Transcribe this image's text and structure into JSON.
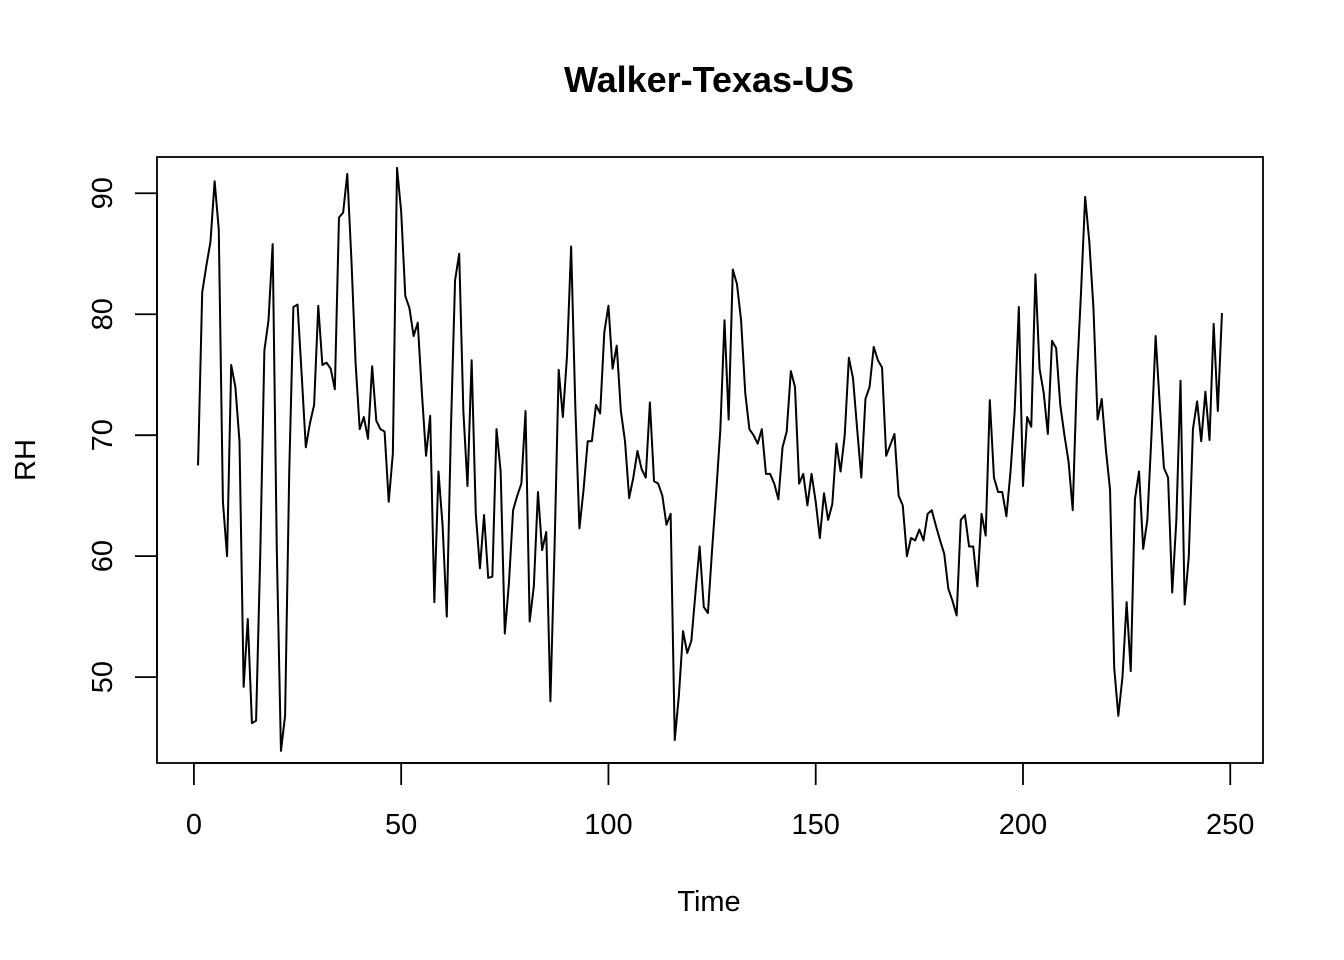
{
  "chart_data": {
    "type": "line",
    "title": "Walker-Texas-US",
    "xlabel": "Time",
    "ylabel": "RH",
    "xlim": [
      -8.9,
      257.9
    ],
    "ylim": [
      42.9,
      93.0
    ],
    "grid": false,
    "legend": "none",
    "x_ticks": [
      0,
      50,
      100,
      150,
      200,
      250
    ],
    "y_ticks": [
      50,
      60,
      70,
      80,
      90
    ],
    "x": [
      1,
      2,
      3,
      4,
      5,
      6,
      7,
      8,
      9,
      10,
      11,
      12,
      13,
      14,
      15,
      16,
      17,
      18,
      19,
      20,
      21,
      22,
      23,
      24,
      25,
      26,
      27,
      28,
      29,
      30,
      31,
      32,
      33,
      34,
      35,
      36,
      37,
      38,
      39,
      40,
      41,
      42,
      43,
      44,
      45,
      46,
      47,
      48,
      49,
      50,
      51,
      52,
      53,
      54,
      55,
      56,
      57,
      58,
      59,
      60,
      61,
      62,
      63,
      64,
      65,
      66,
      67,
      68,
      69,
      70,
      71,
      72,
      73,
      74,
      75,
      76,
      77,
      78,
      79,
      80,
      81,
      82,
      83,
      84,
      85,
      86,
      87,
      88,
      89,
      90,
      91,
      92,
      93,
      94,
      95,
      96,
      97,
      98,
      99,
      100,
      101,
      102,
      103,
      104,
      105,
      106,
      107,
      108,
      109,
      110,
      111,
      112,
      113,
      114,
      115,
      116,
      117,
      118,
      119,
      120,
      121,
      122,
      123,
      124,
      125,
      126,
      127,
      128,
      129,
      130,
      131,
      132,
      133,
      134,
      135,
      136,
      137,
      138,
      139,
      140,
      141,
      142,
      143,
      144,
      145,
      146,
      147,
      148,
      149,
      150,
      151,
      152,
      153,
      154,
      155,
      156,
      157,
      158,
      159,
      160,
      161,
      162,
      163,
      164,
      165,
      166,
      167,
      168,
      169,
      170,
      171,
      172,
      173,
      174,
      175,
      176,
      177,
      178,
      179,
      180,
      181,
      182,
      183,
      184,
      185,
      186,
      187,
      188,
      189,
      190,
      191,
      192,
      193,
      194,
      195,
      196,
      197,
      198,
      199,
      200,
      201,
      202,
      203,
      204,
      205,
      206,
      207,
      208,
      209,
      210,
      211,
      212,
      213,
      214,
      215,
      216,
      217,
      218,
      219,
      220,
      221,
      222,
      223,
      224,
      225,
      226,
      227,
      228,
      229,
      230,
      231,
      232,
      233,
      234,
      235,
      236,
      237,
      238,
      239,
      240,
      241,
      242,
      243,
      244,
      245,
      246,
      247,
      248
    ],
    "series": [
      {
        "values": [
          67.5,
          81.8,
          84.0,
          86.0,
          91.0,
          87.0,
          64.5,
          60.0,
          75.8,
          74.0,
          69.5,
          49.2,
          54.8,
          46.2,
          46.4,
          60.0,
          77.0,
          79.5,
          85.8,
          60.5,
          43.9,
          46.8,
          67.0,
          80.6,
          80.8,
          75.0,
          69.0,
          71.0,
          72.5,
          80.7,
          75.8,
          76.0,
          75.5,
          73.8,
          88.0,
          88.4,
          91.6,
          84.5,
          76.0,
          70.5,
          71.5,
          69.7,
          75.7,
          71.2,
          70.5,
          70.3,
          64.5,
          68.5,
          92.1,
          88.5,
          81.5,
          80.5,
          78.2,
          79.3,
          73.5,
          68.3,
          71.6,
          56.2,
          67.0,
          62.5,
          55.0,
          70.5,
          82.8,
          85.0,
          72.0,
          65.8,
          76.2,
          63.5,
          59.0,
          63.4,
          58.2,
          58.3,
          70.5,
          67.0,
          53.6,
          57.8,
          63.8,
          65.0,
          66.0,
          72.0,
          54.6,
          57.5,
          65.3,
          60.5,
          62.0,
          48.0,
          60.7,
          75.4,
          71.5,
          76.5,
          85.6,
          72.5,
          62.3,
          65.5,
          69.5,
          69.5,
          72.5,
          71.8,
          78.5,
          80.7,
          75.5,
          77.4,
          72.0,
          69.5,
          64.8,
          66.5,
          68.7,
          67.2,
          66.5,
          72.7,
          66.2,
          66.0,
          65.0,
          62.6,
          63.5,
          44.8,
          48.5,
          53.8,
          52.0,
          53.0,
          57.0,
          60.8,
          55.8,
          55.3,
          60.5,
          65.3,
          70.5,
          79.5,
          71.3,
          83.7,
          82.5,
          79.5,
          73.5,
          70.5,
          70.0,
          69.3,
          70.5,
          66.8,
          66.8,
          66.0,
          64.7,
          69.0,
          70.3,
          75.3,
          74.0,
          66.0,
          66.8,
          64.2,
          66.8,
          64.5,
          61.5,
          65.2,
          63.0,
          64.3,
          69.3,
          67.0,
          70.0,
          76.4,
          74.7,
          70.5,
          66.5,
          73.0,
          74.0,
          77.3,
          76.2,
          75.6,
          68.3,
          69.2,
          70.1,
          65.0,
          64.2,
          60.0,
          61.5,
          61.3,
          62.2,
          61.3,
          63.5,
          63.8,
          62.5,
          61.3,
          60.2,
          57.3,
          56.3,
          55.1,
          63.0,
          63.4,
          60.8,
          60.8,
          57.5,
          63.5,
          61.7,
          72.9,
          66.5,
          65.3,
          65.3,
          63.3,
          67.0,
          72.0,
          80.6,
          65.8,
          71.5,
          70.7,
          83.3,
          75.5,
          73.5,
          70.1,
          77.8,
          77.2,
          72.5,
          70.0,
          67.8,
          63.8,
          74.8,
          81.8,
          89.7,
          86.0,
          80.5,
          71.3,
          73.0,
          68.8,
          65.5,
          50.8,
          46.8,
          50.0,
          56.2,
          50.5,
          64.7,
          67.0,
          60.6,
          63.0,
          70.0,
          78.2,
          72.5,
          67.3,
          66.5,
          57.0,
          63.0,
          74.5,
          56.0,
          60.0,
          70.5,
          72.8,
          69.5,
          73.6,
          69.6,
          79.2,
          72.0,
          80.1
        ]
      }
    ]
  }
}
